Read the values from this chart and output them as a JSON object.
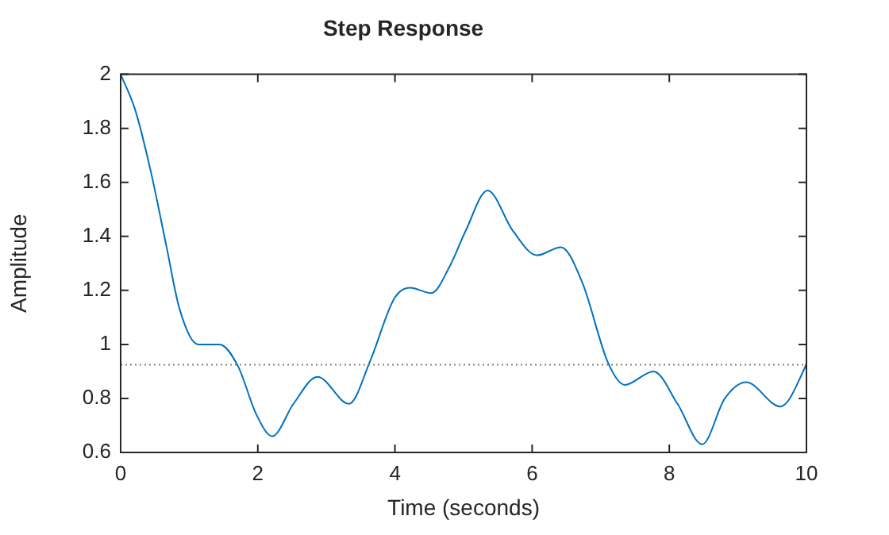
{
  "chart_data": {
    "type": "line",
    "title": "Step Response",
    "xlabel": "Time (seconds)",
    "ylabel": "Amplitude",
    "xlim": [
      0,
      10
    ],
    "xticks": [
      0,
      2,
      4,
      6,
      8,
      10
    ],
    "ylim": [
      0.6,
      2
    ],
    "yticks": [
      0.6,
      0.8,
      1,
      1.2,
      1.4,
      1.6,
      1.8,
      2
    ],
    "grid": false,
    "legend": false,
    "marker": "none",
    "line_style": "solid",
    "ref_lines": [
      {
        "axis": "y",
        "value": 0.925,
        "color": "#808080",
        "line_style": "dotted"
      }
    ],
    "series": [
      {
        "color": "#0072bd",
        "x": [
          0,
          0.21,
          0.44,
          0.67,
          0.86,
          1.13,
          1.44,
          1.71,
          1.98,
          2.21,
          2.52,
          2.87,
          3.33,
          3.64,
          3.99,
          4.22,
          4.53,
          4.8,
          5.03,
          5.35,
          5.72,
          6.07,
          6.42,
          6.73,
          7.11,
          7.35,
          7.77,
          8.12,
          8.48,
          8.81,
          9.12,
          9.62,
          9.97,
          10
        ],
        "values": [
          2,
          1.87,
          1.64,
          1.36,
          1.13,
          1,
          1,
          0.92,
          0.74,
          0.66,
          0.78,
          0.88,
          0.78,
          0.94,
          1.17,
          1.21,
          1.19,
          1.29,
          1.42,
          1.57,
          1.42,
          1.33,
          1.36,
          1.23,
          0.93,
          0.85,
          0.9,
          0.78,
          0.63,
          0.8,
          0.86,
          0.77,
          0.91,
          0.93
        ]
      }
    ]
  }
}
